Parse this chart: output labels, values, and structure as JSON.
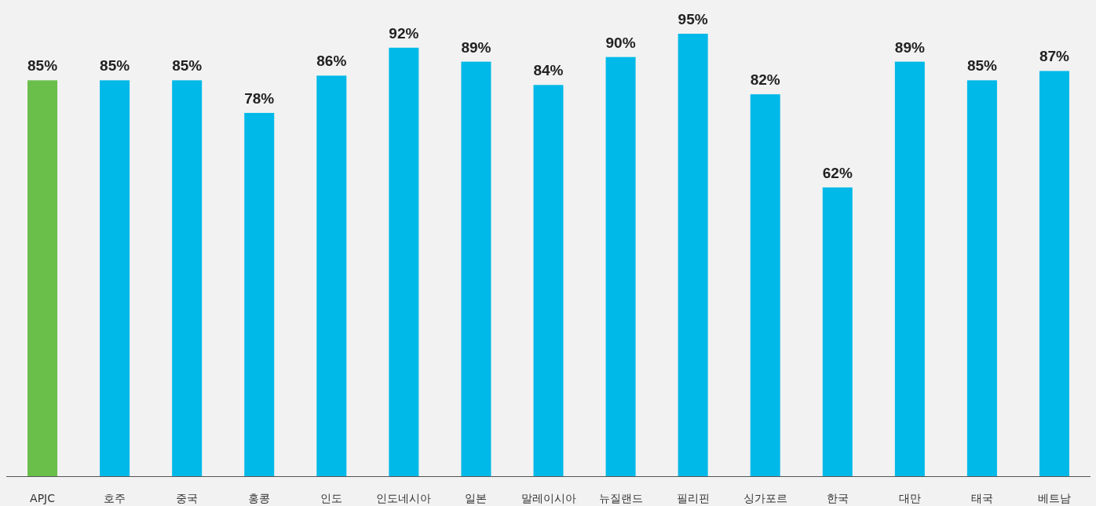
{
  "chart_data": {
    "type": "bar",
    "categories": [
      "APJC",
      "호주",
      "중국",
      "홍콩",
      "인도",
      "인도네시아",
      "일본",
      "말레이시아",
      "뉴질랜드",
      "필리핀",
      "싱가포르",
      "한국",
      "대만",
      "태국",
      "베트남"
    ],
    "values": [
      85,
      85,
      85,
      78,
      86,
      92,
      89,
      84,
      90,
      95,
      82,
      62,
      89,
      85,
      87
    ],
    "value_labels": [
      "85%",
      "85%",
      "85%",
      "78%",
      "86%",
      "92%",
      "89%",
      "84%",
      "90%",
      "95%",
      "82%",
      "62%",
      "89%",
      "85%",
      "87%"
    ],
    "colors": [
      "#6abf4b",
      "#00b9e8",
      "#00b9e8",
      "#00b9e8",
      "#00b9e8",
      "#00b9e8",
      "#00b9e8",
      "#00b9e8",
      "#00b9e8",
      "#00b9e8",
      "#00b9e8",
      "#00b9e8",
      "#00b9e8",
      "#00b9e8",
      "#00b9e8"
    ]
  }
}
